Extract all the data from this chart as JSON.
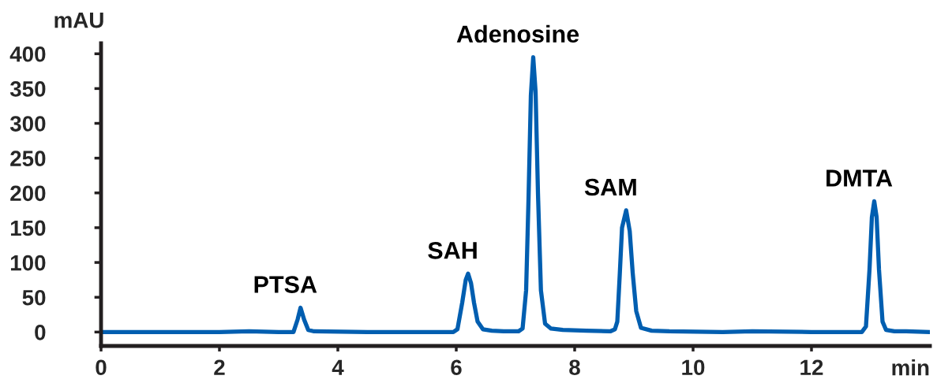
{
  "chart_data": {
    "type": "line",
    "xlabel": "min",
    "ylabel": "mAU",
    "x": [
      0,
      1.0,
      2.0,
      2.5,
      3.0,
      3.25,
      3.32,
      3.37,
      3.43,
      3.5,
      3.6,
      4.5,
      5.5,
      5.95,
      6.02,
      6.1,
      6.16,
      6.2,
      6.25,
      6.3,
      6.36,
      6.45,
      6.6,
      6.8,
      7.05,
      7.12,
      7.18,
      7.22,
      7.26,
      7.3,
      7.34,
      7.38,
      7.43,
      7.5,
      7.6,
      7.8,
      8.2,
      8.6,
      8.68,
      8.72,
      8.76,
      8.8,
      8.87,
      8.93,
      8.98,
      9.04,
      9.12,
      9.3,
      9.6,
      10.5,
      11.0,
      12.0,
      12.85,
      12.92,
      12.98,
      13.02,
      13.06,
      13.1,
      13.14,
      13.2,
      13.26,
      13.4,
      13.6,
      14.0
    ],
    "series": [
      {
        "color": "#005eb0",
        "values": [
          0,
          0,
          0,
          1,
          0,
          0,
          18,
          35,
          18,
          3,
          1,
          0,
          0,
          0,
          4,
          42,
          75,
          84,
          70,
          42,
          15,
          4,
          2,
          1,
          1,
          5,
          60,
          190,
          340,
          395,
          345,
          200,
          60,
          12,
          5,
          3,
          2,
          1,
          4,
          15,
          80,
          150,
          175,
          145,
          85,
          30,
          6,
          2,
          1,
          0,
          1,
          0,
          0,
          8,
          90,
          165,
          188,
          165,
          90,
          15,
          3,
          1,
          1,
          0
        ]
      }
    ],
    "xlim": [
      0,
      14
    ],
    "ylim": [
      -20,
      415
    ],
    "xticks": [
      0,
      2,
      4,
      6,
      8,
      10,
      12
    ],
    "yticks": [
      0,
      50,
      100,
      150,
      200,
      250,
      300,
      350,
      400
    ],
    "line_style": "solid",
    "annotations": [
      {
        "text": "PTSA",
        "x": 3.37,
        "y": 35
      },
      {
        "text": "SAH",
        "x": 6.2,
        "y": 84
      },
      {
        "text": "Adenosine",
        "x": 7.3,
        "y": 395
      },
      {
        "text": "SAM",
        "x": 8.87,
        "y": 175
      },
      {
        "text": "DMTA",
        "x": 13.06,
        "y": 188
      }
    ]
  }
}
